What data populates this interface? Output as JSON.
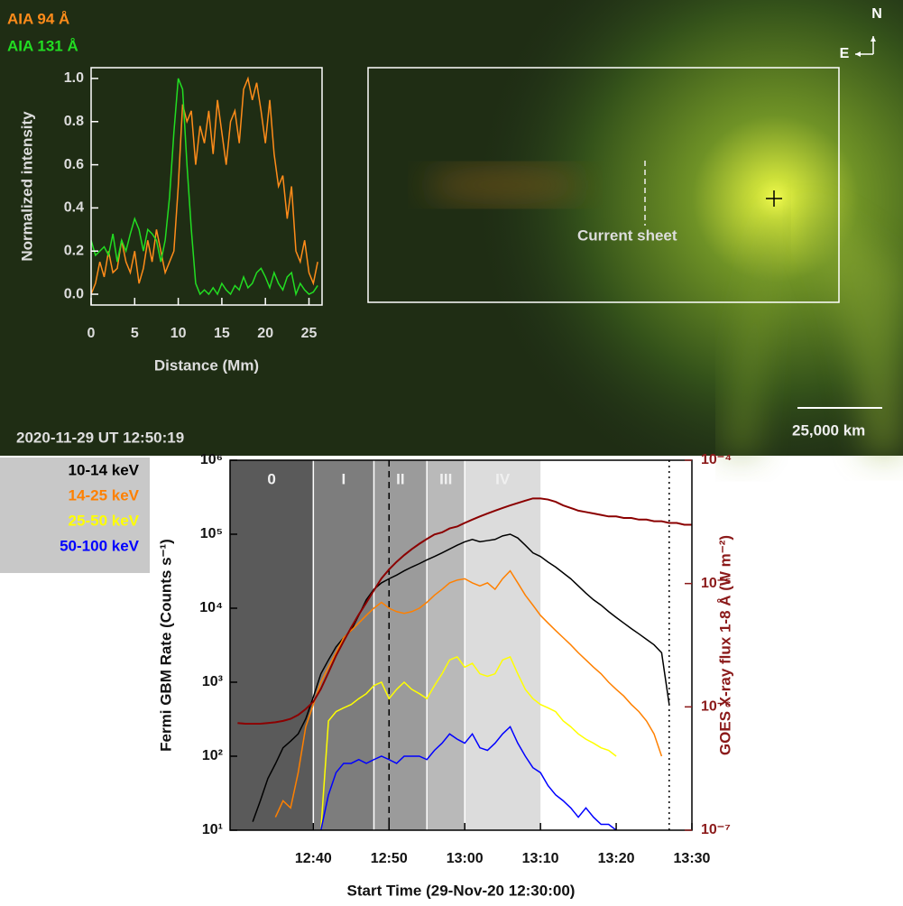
{
  "chart_data": [
    {
      "type": "line",
      "xlabel": "Distance (Mm)",
      "ylabel": "Normalized intensity",
      "annotations": [
        "Current sheet",
        "2020-11-29 UT 12:50:19",
        "25,000 km",
        "N",
        "E"
      ],
      "x": [
        0,
        0.5,
        1,
        1.5,
        2,
        2.5,
        3,
        3.5,
        4,
        4.5,
        5,
        5.5,
        6,
        6.5,
        7,
        7.5,
        8,
        8.5,
        9,
        9.5,
        10,
        10.5,
        11,
        11.5,
        12,
        12.5,
        13,
        13.5,
        14,
        14.5,
        15,
        15.5,
        16,
        16.5,
        17,
        17.5,
        18,
        18.5,
        19,
        19.5,
        20,
        20.5,
        21,
        21.5,
        22,
        22.5,
        23,
        23.5,
        24,
        24.5,
        25,
        25.5,
        26
      ],
      "series": [
        {
          "name": "AIA 94 Å",
          "color": "#ff8c1a",
          "values": [
            0.0,
            0.05,
            0.15,
            0.08,
            0.2,
            0.1,
            0.12,
            0.25,
            0.15,
            0.1,
            0.2,
            0.05,
            0.12,
            0.25,
            0.15,
            0.3,
            0.2,
            0.1,
            0.15,
            0.2,
            0.5,
            0.88,
            0.8,
            0.85,
            0.6,
            0.78,
            0.7,
            0.85,
            0.65,
            0.9,
            0.75,
            0.6,
            0.8,
            0.85,
            0.7,
            0.95,
            1.0,
            0.9,
            0.98,
            0.85,
            0.7,
            0.9,
            0.65,
            0.5,
            0.55,
            0.35,
            0.5,
            0.2,
            0.15,
            0.25,
            0.1,
            0.05,
            0.15
          ]
        },
        {
          "name": "AIA 131 Å",
          "color": "#22dd22",
          "values": [
            0.25,
            0.18,
            0.2,
            0.22,
            0.18,
            0.28,
            0.15,
            0.25,
            0.2,
            0.28,
            0.35,
            0.3,
            0.2,
            0.3,
            0.28,
            0.25,
            0.15,
            0.25,
            0.45,
            0.75,
            1.0,
            0.95,
            0.6,
            0.3,
            0.05,
            0.0,
            0.02,
            0.0,
            0.03,
            0.0,
            0.05,
            0.02,
            0.0,
            0.04,
            0.02,
            0.08,
            0.03,
            0.05,
            0.1,
            0.12,
            0.08,
            0.03,
            0.1,
            0.05,
            0.02,
            0.08,
            0.1,
            0.0,
            0.05,
            0.02,
            0.0,
            0.01,
            0.04
          ]
        }
      ],
      "xlim": [
        0,
        26.5
      ],
      "ylim": [
        -0.05,
        1.05
      ],
      "xticks": [
        0,
        5,
        10,
        15,
        20,
        25
      ],
      "yticks": [
        {
          "value": 0,
          "label": "0.0"
        },
        0.2,
        0.4,
        0.6,
        0.8,
        {
          "value": 1,
          "label": "1.0"
        }
      ]
    },
    {
      "type": "line",
      "xlabel": "Start Time (29-Nov-20 12:30:00)",
      "ylabel": "Fermi GBM Rate (Counts s⁻¹)",
      "y2label": "GOES X-ray flux 1-8 Å (W m⁻²)",
      "y2color": "#8b1a1a",
      "ylog": true,
      "y2log": true,
      "x": [
        "12:30",
        "12:31",
        "12:32",
        "12:33",
        "12:34",
        "12:35",
        "12:36",
        "12:37",
        "12:38",
        "12:39",
        "12:40",
        "12:41",
        "12:42",
        "12:43",
        "12:44",
        "12:45",
        "12:46",
        "12:47",
        "12:48",
        "12:49",
        "12:50",
        "12:51",
        "12:52",
        "12:53",
        "12:54",
        "12:55",
        "12:56",
        "12:57",
        "12:58",
        "12:59",
        "13:00",
        "13:01",
        "13:02",
        "13:03",
        "13:04",
        "13:05",
        "13:06",
        "13:07",
        "13:08",
        "13:09",
        "13:10",
        "13:11",
        "13:12",
        "13:13",
        "13:14",
        "13:15",
        "13:16",
        "13:17",
        "13:18",
        "13:19",
        "13:20",
        "13:21",
        "13:22",
        "13:23",
        "13:24",
        "13:25",
        "13:26",
        "13:27",
        "13:28",
        "13:29",
        "13:30"
      ],
      "series": [
        {
          "name": "10-14 keV",
          "color": "#000000",
          "values": [
            null,
            null,
            13,
            25,
            50,
            79,
            130,
            160,
            200,
            320,
            630,
            1300,
            2000,
            3000,
            4000,
            5000,
            8000,
            13000,
            18000,
            22000,
            25000,
            28000,
            32000,
            36000,
            40000,
            45000,
            50000,
            56000,
            63000,
            71000,
            79000,
            85000,
            79000,
            82000,
            85000,
            95000,
            100000,
            89000,
            71000,
            56000,
            50000,
            42000,
            36000,
            30000,
            25000,
            20000,
            16000,
            13000,
            11000,
            9000,
            7500,
            6300,
            5300,
            4500,
            3800,
            3200,
            2500,
            500,
            null,
            null,
            null
          ]
        },
        {
          "name": "14-25 keV",
          "color": "#ff8000",
          "values": [
            null,
            null,
            null,
            null,
            null,
            15,
            25,
            20,
            60,
            250,
            500,
            1000,
            1600,
            2500,
            4000,
            5000,
            6300,
            8000,
            10000,
            12000,
            10000,
            9000,
            8500,
            9000,
            10000,
            12000,
            15000,
            18000,
            22000,
            24000,
            25000,
            22000,
            20000,
            22000,
            18000,
            25000,
            32000,
            22000,
            15000,
            11000,
            8000,
            6300,
            5000,
            4000,
            3200,
            2500,
            2000,
            1600,
            1300,
            1000,
            800,
            650,
            500,
            400,
            300,
            200,
            100,
            null,
            null,
            null,
            null
          ]
        },
        {
          "name": "25-50 keV",
          "color": "#ffff00",
          "values": [
            null,
            null,
            null,
            null,
            null,
            null,
            null,
            null,
            null,
            null,
            null,
            10,
            300,
            400,
            450,
            500,
            600,
            700,
            900,
            1000,
            600,
            800,
            1000,
            800,
            700,
            600,
            900,
            1300,
            2000,
            2200,
            1600,
            1800,
            1300,
            1200,
            1300,
            2000,
            2200,
            1300,
            800,
            600,
            500,
            450,
            400,
            300,
            250,
            200,
            170,
            150,
            130,
            120,
            100,
            null,
            null,
            null,
            null,
            null,
            null,
            null,
            null,
            null,
            null
          ]
        },
        {
          "name": "50-100 keV",
          "color": "#0000ff",
          "values": [
            null,
            null,
            null,
            null,
            null,
            null,
            null,
            null,
            null,
            null,
            null,
            10,
            30,
            60,
            80,
            80,
            90,
            80,
            90,
            100,
            90,
            80,
            100,
            100,
            100,
            90,
            120,
            150,
            200,
            170,
            150,
            200,
            130,
            120,
            150,
            200,
            250,
            150,
            100,
            70,
            60,
            40,
            30,
            25,
            20,
            15,
            20,
            15,
            12,
            12,
            10,
            null,
            null,
            null,
            null,
            null,
            null,
            null,
            null,
            null,
            null
          ]
        },
        {
          "color": "#8b0000",
          "axis": "y2",
          "values": [
            7.4e-07,
            7.3e-07,
            7.3e-07,
            7.3e-07,
            7.4e-07,
            7.5e-07,
            7.7e-07,
            8e-07,
            8.6e-07,
            9.6e-07,
            1.1e-06,
            1.4e-06,
            1.9e-06,
            2.6e-06,
            3.4e-06,
            4.4e-06,
            5.6e-06,
            7e-06,
            8.8e-06,
            1.1e-05,
            1.3e-05,
            1.5e-05,
            1.7e-05,
            1.9e-05,
            2.1e-05,
            2.3e-05,
            2.5e-05,
            2.6e-05,
            2.8e-05,
            2.9e-05,
            3.1e-05,
            3.3e-05,
            3.5e-05,
            3.7e-05,
            3.9e-05,
            4.1e-05,
            4.3e-05,
            4.5e-05,
            4.7e-05,
            4.9e-05,
            4.9e-05,
            4.8e-05,
            4.6e-05,
            4.3e-05,
            4.1e-05,
            3.9e-05,
            3.8e-05,
            3.7e-05,
            3.6e-05,
            3.5e-05,
            3.5e-05,
            3.4e-05,
            3.4e-05,
            3.3e-05,
            3.3e-05,
            3.2e-05,
            3.2e-05,
            3.1e-05,
            3.1e-05,
            3e-05,
            3e-05
          ]
        }
      ],
      "phases": [
        {
          "name": "0",
          "start": "12:29",
          "end": "12:40",
          "color": "#5a5a5a"
        },
        {
          "name": "I",
          "start": "12:40",
          "end": "12:48",
          "color": "#7d7d7d"
        },
        {
          "name": "II",
          "start": "12:48",
          "end": "12:55",
          "color": "#9b9b9b"
        },
        {
          "name": "III",
          "start": "12:55",
          "end": "13:00",
          "color": "#b9b9b9"
        },
        {
          "name": "IV",
          "start": "13:00",
          "end": "13:10",
          "color": "#dcdcdc"
        }
      ],
      "vlines": [
        {
          "x": "12:50",
          "style": "dashed"
        },
        {
          "x": "13:27",
          "style": "dotted"
        }
      ],
      "xlim": [
        "12:29",
        "13:30"
      ],
      "xticks": [
        "12:40",
        "12:50",
        "13:00",
        "13:10",
        "13:20",
        "13:30"
      ],
      "ylim": [
        10,
        1000000
      ],
      "yticks": [
        {
          "value": 10,
          "label": "10¹"
        },
        {
          "value": 100,
          "label": "10²"
        },
        {
          "value": 1000,
          "label": "10³"
        },
        {
          "value": 10000,
          "label": "10⁴"
        },
        {
          "value": 100000,
          "label": "10⁵"
        },
        {
          "value": 1000000,
          "label": "10⁶"
        }
      ],
      "y2lim": [
        1e-07,
        0.0001
      ],
      "y2ticks": [
        {
          "value": 1e-07,
          "label": "10⁻⁷"
        },
        {
          "value": 1e-06,
          "label": "10⁻⁶"
        },
        {
          "value": 1e-05,
          "label": "10⁻⁵"
        },
        {
          "value": 0.0001,
          "label": "10⁻⁴"
        }
      ]
    }
  ]
}
